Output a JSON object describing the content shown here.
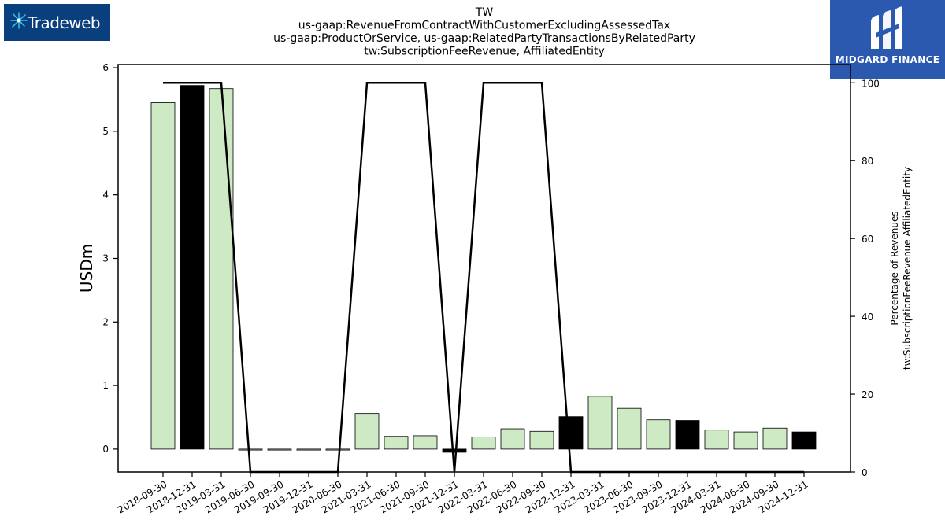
{
  "branding": {
    "left_logo_text": "Tradeweb",
    "right_logo_text": "MIDGARD FINANCE"
  },
  "colors": {
    "bar_light": "#cdeac5",
    "bar_dark": "#000000",
    "line": "#000000",
    "left_logo_bg": "#0a3f7e",
    "right_logo_bg": "#2c59b0"
  },
  "chart_data": {
    "type": "bar",
    "title_lines": [
      "TW",
      "us-gaap:RevenueFromContractWithCustomerExcludingAssessedTax",
      "us-gaap:ProductOrService, us-gaap:RelatedPartyTransactionsByRelatedParty",
      "tw:SubscriptionFeeRevenue, AffiliatedEntity"
    ],
    "ylabel": "USDm",
    "y2label_lines": [
      "Percentage of Revenues",
      "tw:SubscriptionFeeRevenue AffiliatedEntity"
    ],
    "ylim": [
      -0.36,
      6.05
    ],
    "y2lim": [
      0,
      104.7
    ],
    "yticks": [
      0,
      1,
      2,
      3,
      4,
      5,
      6
    ],
    "y2ticks": [
      0,
      20,
      40,
      60,
      80,
      100
    ],
    "categories": [
      "2018-09-30",
      "2018-12-31",
      "2019-03-31",
      "2019-06-30",
      "2019-09-30",
      "2019-12-31",
      "2020-06-30",
      "2021-03-31",
      "2021-06-30",
      "2021-09-30",
      "2021-12-31",
      "2022-03-31",
      "2022-06-30",
      "2022-09-30",
      "2022-12-31",
      "2023-03-31",
      "2023-06-30",
      "2023-09-30",
      "2023-12-31",
      "2024-03-31",
      "2024-06-30",
      "2024-09-30",
      "2024-12-31"
    ],
    "series": [
      {
        "type": "bar",
        "values": [
          5.45,
          5.72,
          5.67,
          0,
          0,
          0,
          0,
          0.56,
          0.2,
          0.21,
          -0.05,
          0.19,
          0.32,
          0.28,
          0.51,
          0.83,
          0.64,
          0.46,
          0.45,
          0.3,
          0.27,
          0.33,
          0.27
        ],
        "dark": [
          false,
          true,
          false,
          false,
          false,
          false,
          false,
          false,
          false,
          false,
          true,
          false,
          false,
          false,
          true,
          false,
          false,
          false,
          true,
          false,
          false,
          false,
          true
        ]
      },
      {
        "type": "line",
        "axis": "right",
        "values": [
          100,
          100,
          100,
          0,
          0,
          0,
          0,
          100,
          100,
          100,
          0,
          100,
          100,
          100,
          0,
          0,
          0,
          0,
          0,
          0,
          0,
          0,
          0
        ]
      }
    ]
  }
}
